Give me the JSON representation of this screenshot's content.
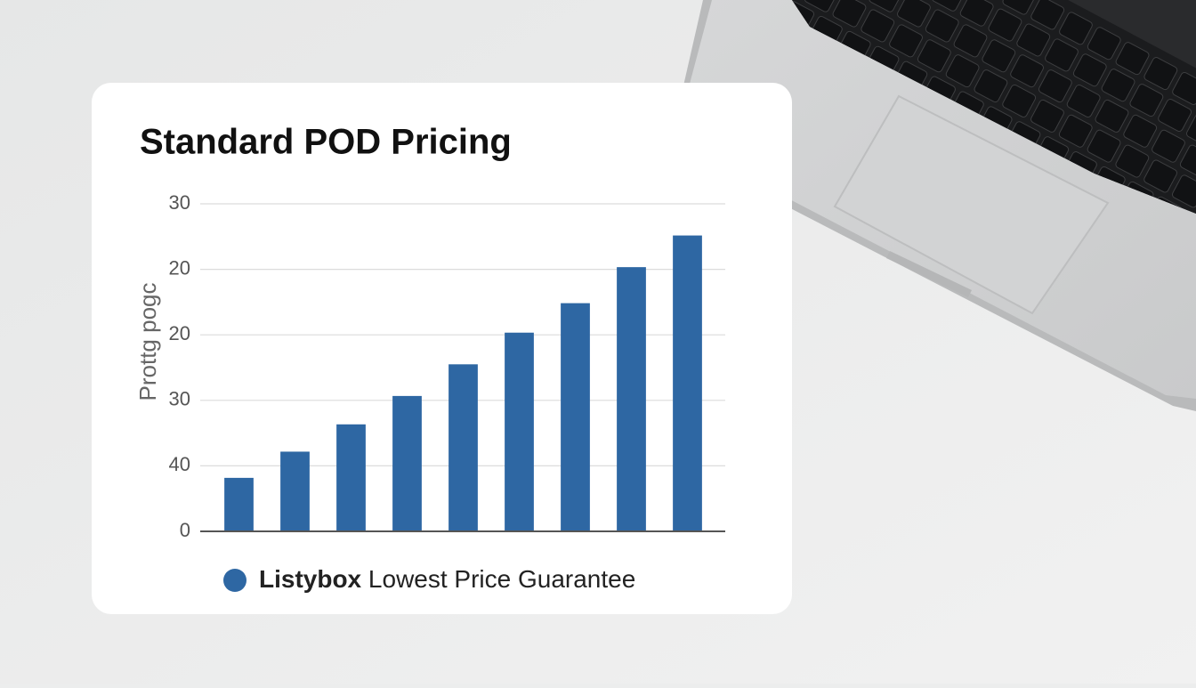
{
  "chart_data": {
    "type": "bar",
    "title": "Standard POD Pricing",
    "y_label": "Prottg pogc",
    "categories": [
      null,
      null,
      null,
      null,
      null,
      null,
      null,
      null,
      null
    ],
    "series": [
      {
        "name": "Listybox",
        "color": "#2e67a3",
        "values": [
          4.9,
          7.3,
          9.8,
          12.4,
          15.3,
          18.2,
          20.9,
          24.2,
          27.1
        ]
      }
    ],
    "legend_text": "Lowest Price Guarantee",
    "ylim": [
      0,
      30
    ],
    "yticks": [
      0,
      {
        "value": 6,
        "label": "40"
      },
      {
        "value": 12,
        "label": "30"
      },
      {
        "value": 18,
        "label": "20"
      },
      {
        "value": 24,
        "label": "20"
      },
      30
    ],
    "grid": true
  }
}
